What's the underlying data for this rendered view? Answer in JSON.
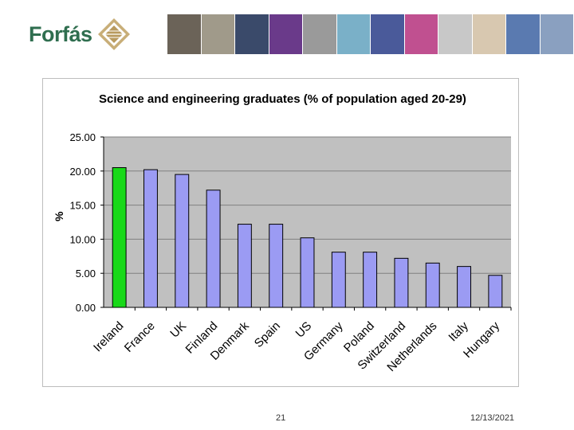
{
  "header": {
    "logo_text": "Forfás",
    "photo_strip_colors": [
      "#6b6358",
      "#a09a8a",
      "#3a4a6a",
      "#6a3a8a",
      "#9a9a9a",
      "#7ab0c8",
      "#4a5a9a",
      "#c05090",
      "#c8c8c8",
      "#d8c8b0",
      "#5a7ab0",
      "#8aa0c0"
    ]
  },
  "colors": {
    "highlight_bar": "#19d919",
    "bar": "#9b9bf3",
    "plot_bg": "#c0c0c0",
    "grid": "#808080"
  },
  "chart_data": {
    "type": "bar",
    "title": "Science and engineering graduates (% of population aged 20-29)",
    "ylabel": "%",
    "xlabel": "",
    "categories": [
      "Ireland",
      "France",
      "UK",
      "Finland",
      "Denmark",
      "Spain",
      "US",
      "Germany",
      "Poland",
      "Switzerland",
      "Netherlands",
      "Italy",
      "Hungary"
    ],
    "values": [
      20.5,
      20.2,
      19.5,
      17.2,
      12.2,
      12.2,
      10.2,
      8.1,
      8.1,
      7.2,
      6.5,
      6.0,
      4.7
    ],
    "highlight_index": 0,
    "ylim": [
      0,
      25
    ],
    "yticks": [
      "0.00",
      "5.00",
      "10.00",
      "15.00",
      "20.00",
      "25.00"
    ],
    "grid": true
  },
  "footer": {
    "page_number": "21",
    "date": "12/13/2021"
  }
}
